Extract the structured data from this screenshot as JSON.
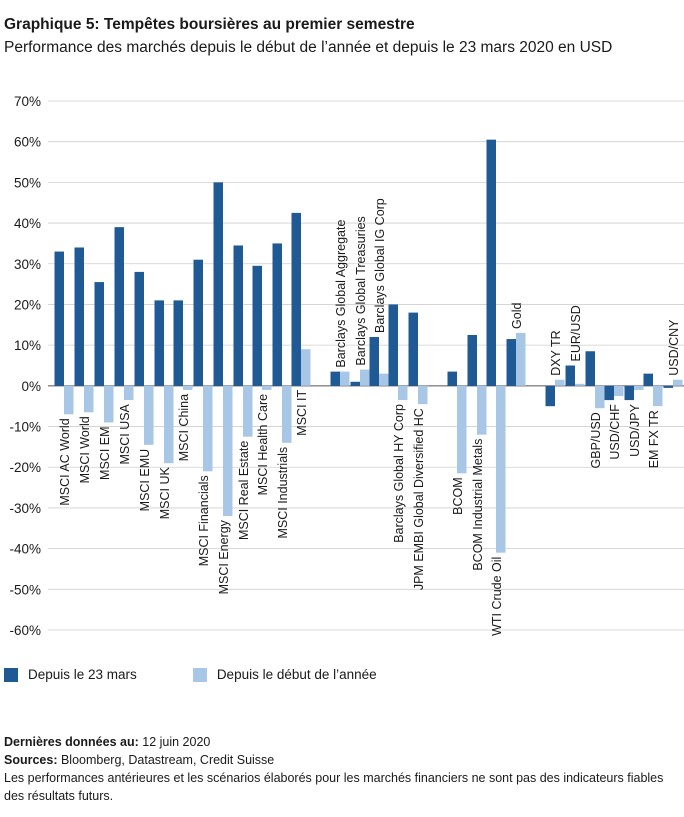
{
  "title": "Graphique 5: Tempêtes boursières au premier semestre",
  "subtitle": "Performance des marchés depuis le début de l’année et depuis le 23 mars 2020 en USD",
  "colors": {
    "dark": "#1f5a95",
    "light": "#a8c6e6",
    "grid": "#cfcfcf",
    "zero": "#555555"
  },
  "chart_data": {
    "type": "bar",
    "ylim": [
      -60,
      70
    ],
    "yticks": [
      70,
      60,
      50,
      40,
      30,
      20,
      10,
      0,
      -10,
      -20,
      -30,
      -40,
      -50,
      -60
    ],
    "ytick_labels": [
      "70%",
      "60%",
      "50%",
      "40%",
      "30%",
      "20%",
      "10%",
      "0%",
      "-10%",
      "-20%",
      "-30%",
      "-40%",
      "-50%",
      "-60%"
    ],
    "grid": true,
    "legend_position": "bottom-left",
    "categories": [
      "MSCI AC World",
      "MSCI World",
      "MSCI EM",
      "MSCI USA",
      "MSCI EMU",
      "MSCI UK",
      "MSCI China",
      "MSCI Financials",
      "MSCI Energy",
      "MSCI Real Estate",
      "MSCI Health Care",
      "MSCI Industrials",
      "MSCI IT",
      "Barclays Global Aggregate",
      "Barclays Global Treasuries",
      "Barclays Global IG Corp",
      "Barclays Global HY Corp",
      "JPM EMBI Global Diversified HC",
      "BCOM",
      "BCOM Industrial Metals",
      "WTI Crude Oil",
      "Gold",
      "DXY TR",
      "EUR/USD",
      "GBP/USD",
      "USD/CHF",
      "USD/JPY",
      "EM FX TR",
      "USD/CNY"
    ],
    "label_side": [
      "below",
      "below",
      "below",
      "below",
      "below",
      "below",
      "below",
      "below",
      "below",
      "below",
      "below",
      "below",
      "below",
      "above",
      "above",
      "above",
      "below",
      "below",
      "below",
      "below",
      "below",
      "above",
      "above",
      "above",
      "below",
      "below",
      "below",
      "below",
      "above"
    ],
    "series": [
      {
        "name": "Depuis le 23 mars",
        "values": [
          33,
          34,
          25.5,
          39,
          28,
          21,
          21,
          31,
          50,
          34.5,
          29.5,
          35,
          42.5,
          3.5,
          1,
          12,
          20,
          18,
          3.5,
          12.5,
          60.5,
          11.5,
          -5,
          5,
          8.5,
          -3.5,
          -3.5,
          3,
          -0.5
        ]
      },
      {
        "name": "Depuis le début de l’année",
        "values": [
          -7,
          -6.5,
          -9,
          -3.5,
          -14.5,
          -19,
          -1,
          -21,
          -32,
          -12.5,
          -1,
          -14,
          9,
          3.5,
          4,
          3,
          -3.5,
          -4.5,
          -21.5,
          -12,
          -41,
          13,
          1.5,
          0.5,
          -5.5,
          -2.5,
          -1,
          -5,
          1.5
        ]
      }
    ]
  },
  "legend": {
    "dark_label": "Depuis le 23 mars",
    "light_label": "Depuis le début de l’année"
  },
  "footer": {
    "last_data_label": "Dernières données au:",
    "last_data_value": " 12 juin 2020",
    "sources_label": "Sources:",
    "sources_value": " Bloomberg, Datastream, Credit Suisse",
    "disclaimer": "Les performances antérieures et les scénarios élaborés pour les marchés financiers ne sont pas des indicateurs fiables des résultats futurs."
  }
}
